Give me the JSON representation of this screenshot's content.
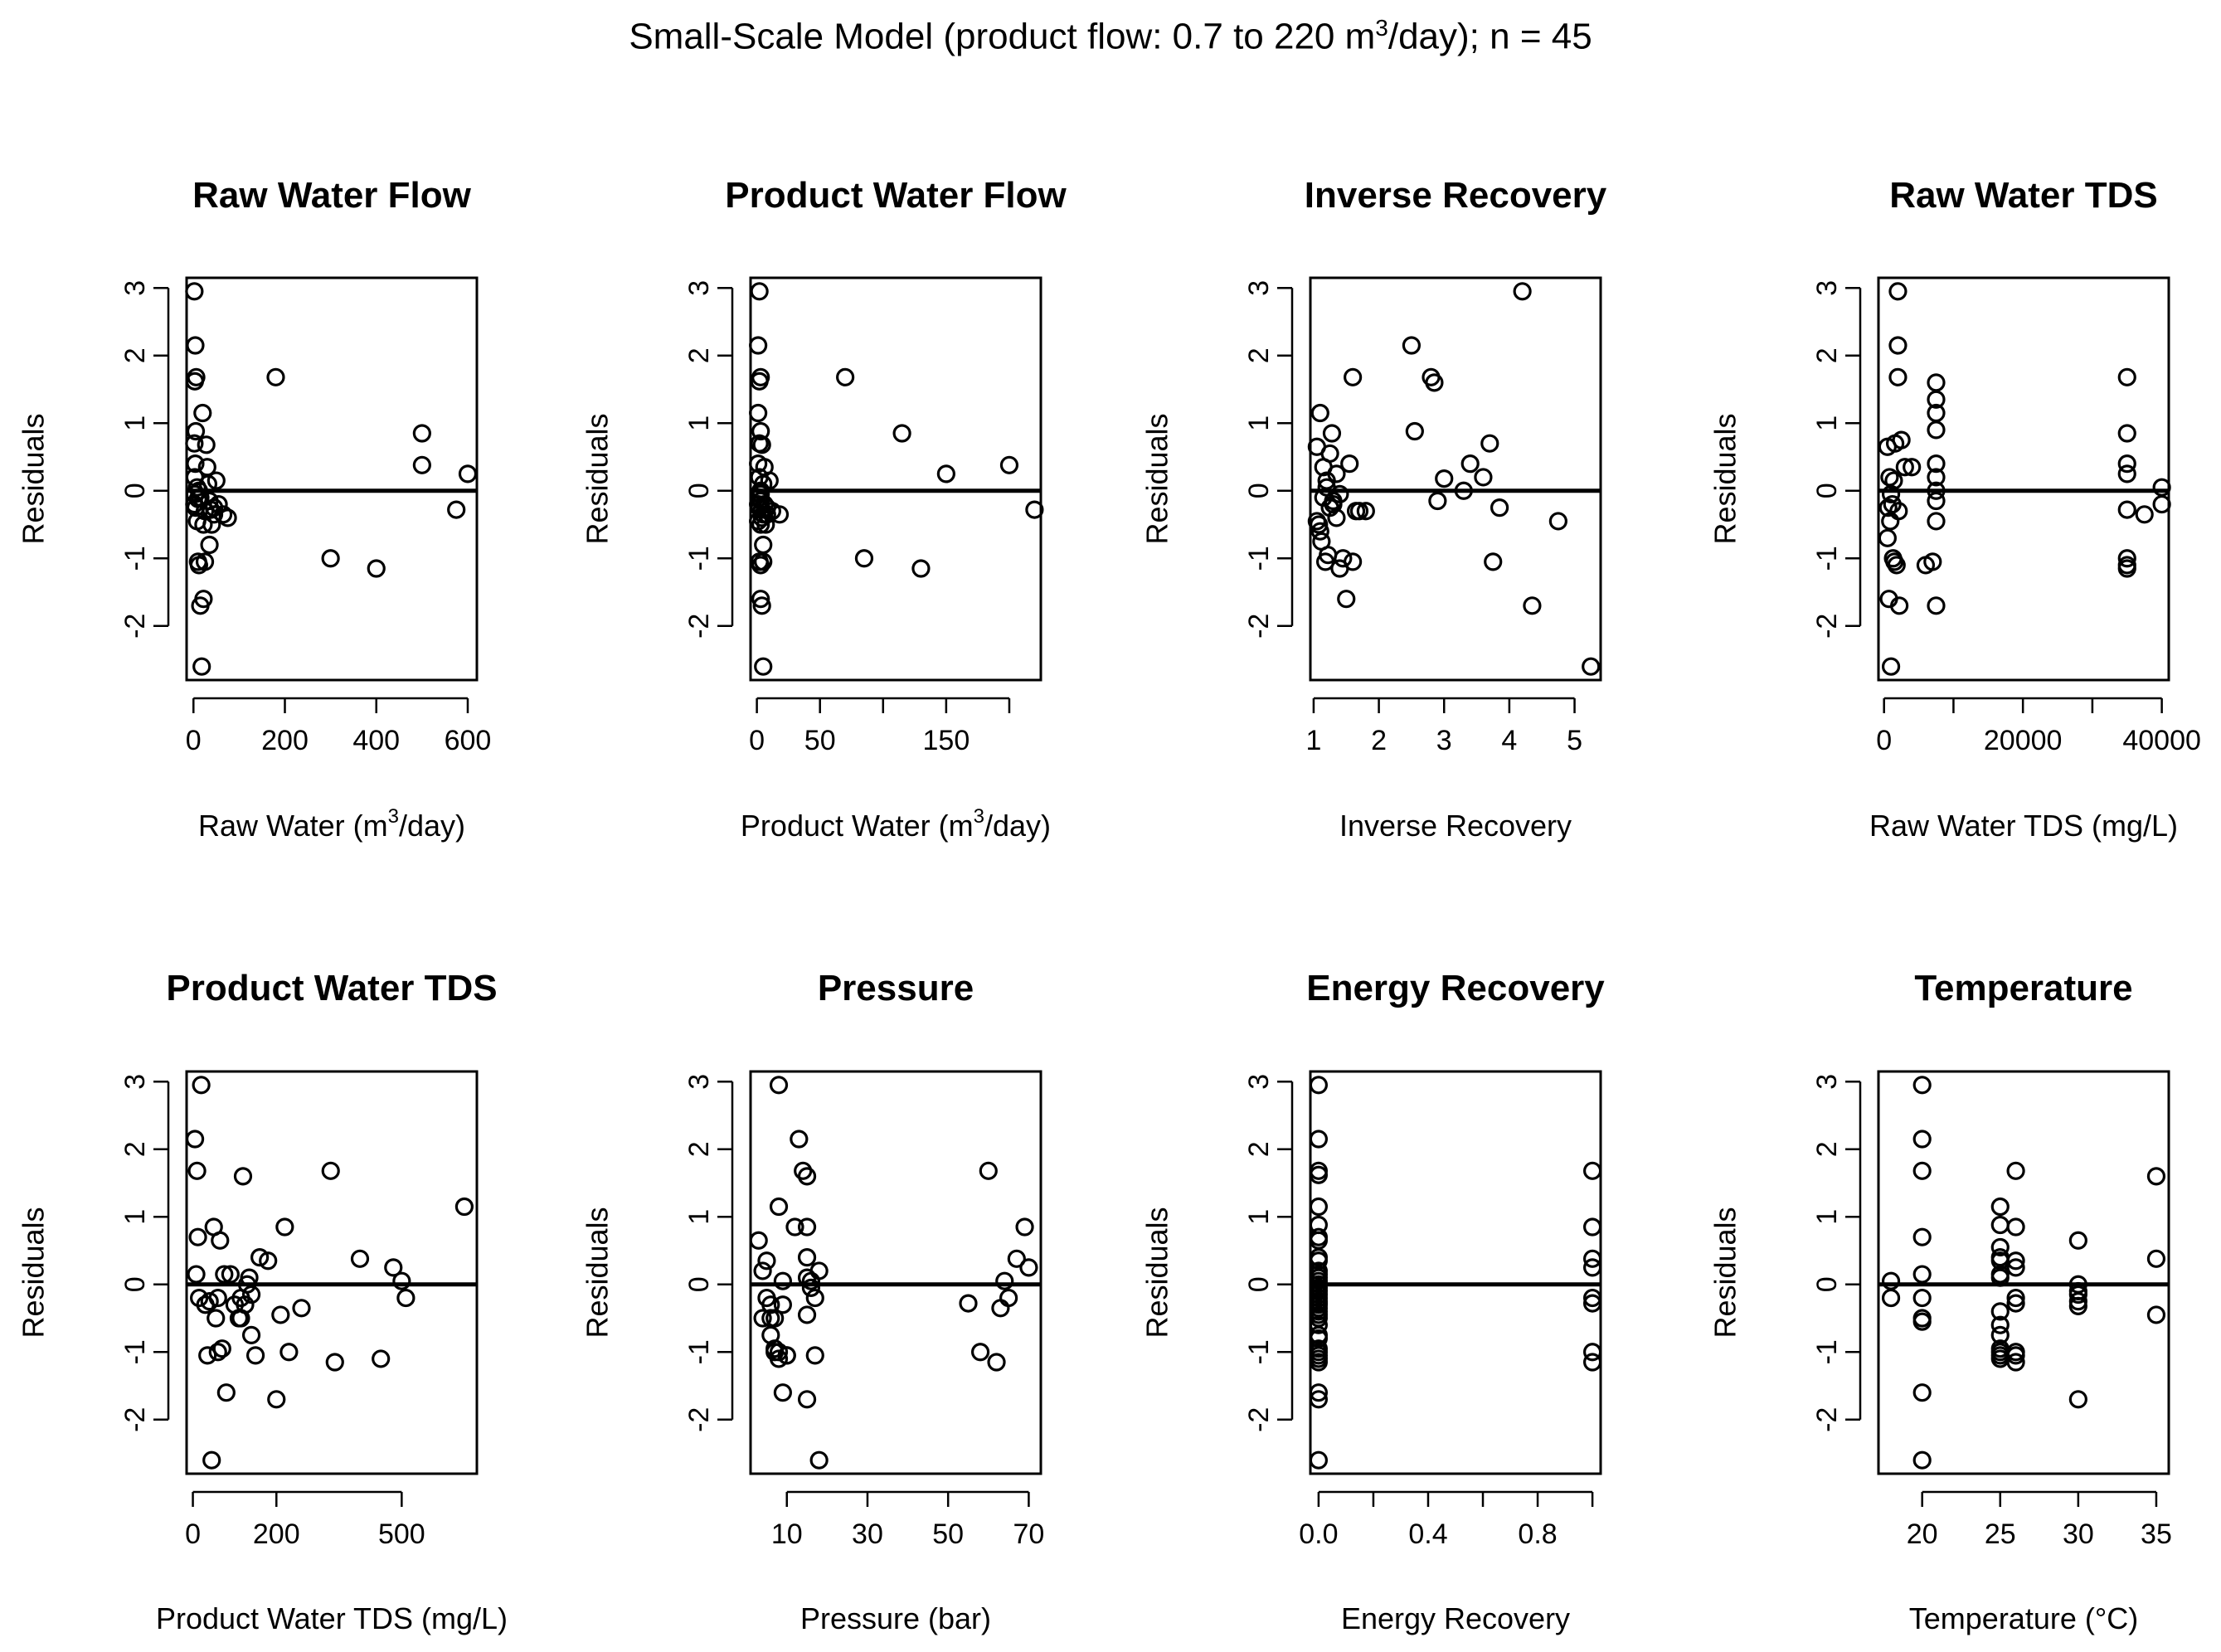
{
  "figure_title": {
    "prefix": "Small-Scale Model (product flow: 0.7 to 220 m",
    "sup": "3",
    "suffix": "/day); n = 45"
  },
  "chart_data": [
    {
      "type": "scatter",
      "title": "Raw Water Flow",
      "xlabel": "Raw Water (m",
      "xlabel_sup": "3",
      "xlabel_suffix": "/day)",
      "ylabel": "Residuals",
      "xlim": [
        -15,
        620
      ],
      "ylim": [
        -2.8,
        3.15
      ],
      "xticks": [
        0,
        200,
        400,
        600
      ],
      "xtick_labels": [
        "0",
        "200",
        "400",
        "600"
      ],
      "yticks": [
        -2,
        -1,
        0,
        1,
        2,
        3
      ],
      "ytick_labels": [
        "-2",
        "-1",
        "0",
        "1",
        "2",
        "3"
      ],
      "hline": 0,
      "x": [
        2,
        4,
        6,
        3,
        5,
        2,
        4,
        3,
        3,
        2,
        5,
        8,
        10,
        12,
        15,
        18,
        20,
        22,
        25,
        28,
        30,
        32,
        35,
        38,
        40,
        45,
        50,
        55,
        65,
        75,
        15,
        12,
        22,
        35,
        45,
        180,
        300,
        400,
        500,
        500,
        575,
        600,
        8,
        10,
        25
      ],
      "y": [
        2.95,
        2.15,
        1.68,
        1.62,
        0.88,
        0.7,
        0.4,
        0.2,
        -0.05,
        -0.2,
        -0.25,
        -0.45,
        -1.05,
        -1.1,
        -1.7,
        -2.6,
        1.15,
        -1.6,
        -1.05,
        0.68,
        0.35,
        0.1,
        -0.15,
        -0.28,
        -0.5,
        -0.35,
        0.15,
        -0.2,
        -0.35,
        -0.4,
        -0.1,
        0.0,
        -0.5,
        -0.8,
        -0.25,
        1.68,
        -1.0,
        -1.15,
        0.85,
        0.38,
        -0.28,
        0.25,
        0.05,
        -0.12,
        -0.3
      ]
    },
    {
      "type": "scatter",
      "title": "Product Water Flow",
      "xlabel": "Product Water (m",
      "xlabel_sup": "3",
      "xlabel_suffix": "/day)",
      "ylabel": "Residuals",
      "xlim": [
        -5,
        225
      ],
      "ylim": [
        -2.8,
        3.15
      ],
      "xticks": [
        0,
        50,
        100,
        150,
        200
      ],
      "xtick_labels": [
        "0",
        "50",
        "",
        "150",
        ""
      ],
      "yticks": [
        -2,
        -1,
        0,
        1,
        2,
        3
      ],
      "ytick_labels": [
        "-2",
        "-1",
        "0",
        "1",
        "2",
        "3"
      ],
      "hline": 0,
      "x": [
        2,
        1,
        3,
        2,
        1,
        3,
        2,
        1,
        2,
        3,
        1,
        2,
        1,
        2,
        3,
        4,
        5,
        3,
        2,
        4,
        6,
        5,
        3,
        4,
        7,
        8,
        10,
        6,
        5,
        4,
        2,
        3,
        5,
        8,
        12,
        18,
        70,
        85,
        115,
        130,
        150,
        200,
        220,
        5,
        3
      ],
      "y": [
        2.95,
        2.15,
        1.68,
        1.62,
        1.15,
        0.88,
        0.7,
        0.4,
        0.2,
        -0.05,
        -0.2,
        -0.25,
        -0.45,
        -1.05,
        -1.1,
        -1.7,
        -2.6,
        -1.6,
        -1.05,
        0.68,
        0.35,
        0.1,
        -0.15,
        -0.28,
        -0.5,
        -0.35,
        0.15,
        -0.2,
        -0.35,
        -0.4,
        -0.1,
        0.0,
        -0.8,
        -0.25,
        -0.3,
        -0.35,
        1.68,
        -1.0,
        0.85,
        -1.15,
        0.25,
        0.38,
        -0.28,
        -1.05,
        -0.5
      ]
    },
    {
      "type": "scatter",
      "title": "Inverse Recovery",
      "xlabel": "Inverse Recovery",
      "xlabel_sup": "",
      "xlabel_suffix": "",
      "ylabel": "Residuals",
      "xlim": [
        0.95,
        5.4
      ],
      "ylim": [
        -2.8,
        3.15
      ],
      "xticks": [
        1,
        2,
        3,
        4,
        5
      ],
      "xtick_labels": [
        "1",
        "2",
        "3",
        "4",
        "5"
      ],
      "yticks": [
        -2,
        -1,
        0,
        1,
        2,
        3
      ],
      "ytick_labels": [
        "-2",
        "-1",
        "0",
        "1",
        "2",
        "3"
      ],
      "hline": 0,
      "x": [
        1.1,
        1.05,
        1.15,
        1.2,
        1.08,
        1.25,
        1.3,
        1.12,
        1.18,
        1.22,
        1.28,
        1.35,
        1.4,
        1.5,
        1.45,
        1.6,
        1.55,
        1.65,
        1.7,
        1.8,
        1.1,
        1.15,
        1.2,
        1.3,
        1.05,
        2.5,
        2.55,
        2.8,
        2.85,
        2.9,
        3.0,
        3.3,
        3.4,
        3.6,
        3.7,
        3.75,
        3.85,
        4.2,
        4.35,
        4.75,
        5.25,
        1.4,
        1.6,
        1.25,
        1.35
      ],
      "y": [
        1.15,
        0.65,
        0.35,
        0.15,
        -0.5,
        -0.25,
        -0.2,
        -0.75,
        -1.05,
        -0.95,
        0.85,
        0.25,
        -0.05,
        -1.6,
        -1.0,
        1.68,
        0.4,
        -0.3,
        -0.3,
        -0.3,
        -0.6,
        -0.1,
        0.05,
        -0.15,
        -0.45,
        2.15,
        0.88,
        1.68,
        1.6,
        -0.15,
        0.18,
        0.0,
        0.4,
        0.2,
        0.7,
        -1.05,
        -0.25,
        2.95,
        -1.7,
        -0.45,
        -2.6,
        -1.15,
        -1.05,
        0.55,
        -0.4
      ]
    },
    {
      "type": "scatter",
      "title": "Raw Water TDS",
      "xlabel": "Raw Water TDS (mg/L)",
      "xlabel_sup": "",
      "xlabel_suffix": "",
      "ylabel": "Residuals",
      "xlim": [
        -800,
        41000
      ],
      "ylim": [
        -2.8,
        3.15
      ],
      "xticks": [
        0,
        10000,
        20000,
        30000,
        40000
      ],
      "xtick_labels": [
        "0",
        "",
        "20000",
        "",
        "40000"
      ],
      "yticks": [
        -2,
        -1,
        0,
        1,
        2,
        3
      ],
      "ytick_labels": [
        "-2",
        "-1",
        "0",
        "1",
        "2",
        "3"
      ],
      "hline": 0,
      "x": [
        2000,
        2000,
        2000,
        500,
        800,
        1000,
        1200,
        600,
        900,
        1500,
        1800,
        2200,
        1000,
        700,
        1300,
        1600,
        500,
        2500,
        3000,
        4000,
        6000,
        7000,
        7500,
        7500,
        7500,
        7500,
        7500,
        7500,
        7500,
        7500,
        7500,
        7500,
        35000,
        35000,
        35000,
        35000,
        35000,
        35000,
        35000,
        35000,
        37500,
        40000,
        40000,
        1400,
        2100
      ],
      "y": [
        2.95,
        2.15,
        1.68,
        0.65,
        0.2,
        -0.05,
        -0.2,
        -0.25,
        -0.45,
        -1.05,
        -1.1,
        -1.7,
        -2.6,
        -1.6,
        -1.0,
        0.7,
        -0.7,
        0.75,
        0.35,
        0.35,
        -1.1,
        -1.05,
        1.6,
        1.35,
        1.15,
        0.9,
        0.4,
        0.2,
        0.0,
        -0.15,
        -0.45,
        -1.7,
        1.68,
        0.85,
        0.4,
        0.25,
        -0.28,
        -1.0,
        -1.1,
        -1.15,
        -0.35,
        0.05,
        -0.2,
        0.15,
        -0.3
      ]
    },
    {
      "type": "scatter",
      "title": "Product Water TDS",
      "xlabel": "Product Water TDS (mg/L)",
      "xlabel_sup": "",
      "xlabel_suffix": "",
      "ylabel": "Residuals",
      "xlim": [
        -15,
        680
      ],
      "ylim": [
        -2.8,
        3.15
      ],
      "xticks": [
        0,
        200,
        500
      ],
      "xtick_labels": [
        "0",
        "200",
        "500"
      ],
      "yticks": [
        -2,
        -1,
        0,
        1,
        2,
        3
      ],
      "ytick_labels": [
        "-2",
        "-1",
        "0",
        "1",
        "2",
        "3"
      ],
      "hline": 0,
      "x": [
        5,
        8,
        10,
        12,
        15,
        20,
        30,
        40,
        50,
        55,
        60,
        65,
        70,
        75,
        80,
        90,
        100,
        110,
        115,
        120,
        130,
        140,
        150,
        160,
        180,
        200,
        210,
        220,
        230,
        260,
        330,
        340,
        400,
        450,
        480,
        500,
        510,
        650,
        45,
        35,
        60,
        115,
        125,
        135,
        140
      ],
      "y": [
        2.15,
        0.15,
        1.68,
        0.7,
        -0.2,
        2.95,
        -0.3,
        -0.25,
        0.85,
        -0.5,
        -1.0,
        0.65,
        -0.95,
        0.15,
        -1.6,
        0.15,
        -0.3,
        -0.5,
        -0.2,
        1.6,
        0.0,
        -0.75,
        -1.05,
        0.4,
        0.35,
        -1.7,
        -0.45,
        0.85,
        -1.0,
        -0.35,
        1.68,
        -1.15,
        0.38,
        -1.1,
        0.25,
        0.05,
        -0.2,
        1.15,
        -2.6,
        -1.05,
        -0.2,
        -0.5,
        -0.3,
        0.1,
        -0.15
      ]
    },
    {
      "type": "scatter",
      "title": "Pressure",
      "xlabel": "Pressure (bar)",
      "xlabel_sup": "",
      "xlabel_suffix": "",
      "ylabel": "Residuals",
      "xlim": [
        1,
        73
      ],
      "ylim": [
        -2.8,
        3.15
      ],
      "xticks": [
        10,
        30,
        50,
        70
      ],
      "xtick_labels": [
        "10",
        "30",
        "50",
        "70"
      ],
      "yticks": [
        -2,
        -1,
        0,
        1,
        2,
        3
      ],
      "ytick_labels": [
        "-2",
        "-1",
        "0",
        "1",
        "2",
        "3"
      ],
      "hline": 0,
      "x": [
        3,
        4,
        4,
        5,
        5,
        6,
        6,
        7,
        7,
        8,
        8,
        9,
        9,
        10,
        10,
        12,
        13,
        14,
        15,
        15,
        15,
        15,
        15,
        15,
        16,
        16,
        17,
        17,
        18,
        18,
        6,
        7,
        8,
        8,
        55,
        58,
        60,
        62,
        63,
        64,
        65,
        67,
        69,
        70,
        9
      ],
      "y": [
        0.65,
        0.2,
        -0.5,
        0.35,
        -0.2,
        -0.5,
        -0.75,
        -0.95,
        -1.0,
        2.95,
        1.15,
        -1.6,
        -0.3,
        -1.05,
        -1.05,
        0.85,
        2.15,
        1.68,
        1.6,
        0.85,
        0.4,
        0.1,
        -0.45,
        -1.7,
        0.05,
        -0.05,
        -0.2,
        -1.05,
        0.2,
        -2.6,
        -0.3,
        -0.5,
        -1.0,
        -1.1,
        -0.28,
        -1.0,
        1.68,
        -1.15,
        -0.35,
        0.05,
        -0.2,
        0.38,
        0.85,
        0.25,
        0.05
      ]
    },
    {
      "type": "scatter",
      "title": "Energy Recovery",
      "xlabel": "Energy Recovery",
      "xlabel_sup": "",
      "xlabel_suffix": "",
      "ylabel": "Residuals",
      "xlim": [
        -0.03,
        1.03
      ],
      "ylim": [
        -2.8,
        3.15
      ],
      "xticks": [
        0,
        0.2,
        0.4,
        0.6,
        0.8,
        1.0
      ],
      "xtick_labels": [
        "0.0",
        "",
        "0.4",
        "",
        "0.8",
        ""
      ],
      "yticks": [
        -2,
        -1,
        0,
        1,
        2,
        3
      ],
      "ytick_labels": [
        "-2",
        "-1",
        "0",
        "1",
        "2",
        "3"
      ],
      "hline": 0,
      "x": [
        0,
        0,
        0,
        0,
        0,
        0,
        0,
        0,
        0,
        0,
        0,
        0,
        0,
        0,
        0,
        0,
        0,
        0,
        0,
        0,
        0,
        0,
        0,
        0,
        0,
        0,
        0,
        0,
        0,
        0,
        0,
        0,
        0,
        0,
        0,
        0,
        0,
        1,
        1,
        1,
        1,
        1,
        1,
        1,
        1
      ],
      "y": [
        2.95,
        2.15,
        1.68,
        1.62,
        1.15,
        0.88,
        0.7,
        0.65,
        0.4,
        0.35,
        0.2,
        0.15,
        0.1,
        0.05,
        0.0,
        -0.05,
        -0.1,
        -0.15,
        -0.2,
        -0.25,
        -0.28,
        -0.3,
        -0.35,
        -0.4,
        -0.45,
        -0.5,
        -0.6,
        -0.75,
        -0.95,
        -1.0,
        -1.05,
        -1.1,
        -1.15,
        -1.6,
        -1.7,
        -2.6,
        -0.8,
        1.68,
        0.85,
        0.38,
        0.25,
        -0.2,
        -0.28,
        -1.0,
        -1.15
      ]
    },
    {
      "type": "scatter",
      "title": "Temperature",
      "xlabel": "Temperature (°C)",
      "xlabel_sup": "",
      "xlabel_suffix": "",
      "ylabel": "Residuals",
      "xlim": [
        17.2,
        35.8
      ],
      "ylim": [
        -2.8,
        3.15
      ],
      "xticks": [
        20,
        25,
        30,
        35
      ],
      "xtick_labels": [
        "20",
        "25",
        "30",
        "35"
      ],
      "yticks": [
        -2,
        -1,
        0,
        1,
        2,
        3
      ],
      "ytick_labels": [
        "-2",
        "-1",
        "0",
        "1",
        "2",
        "3"
      ],
      "hline": 0,
      "x": [
        18,
        18,
        20,
        20,
        20,
        20,
        20,
        20,
        20,
        20,
        20,
        25,
        25,
        25,
        25,
        25,
        25,
        25,
        25,
        25,
        25,
        26,
        26,
        26,
        26,
        26,
        26,
        26,
        30,
        30,
        30,
        30,
        30,
        30,
        35,
        35,
        35,
        25,
        25,
        26,
        20,
        30,
        25,
        26,
        25
      ],
      "y": [
        0.05,
        -0.2,
        2.95,
        2.15,
        1.68,
        0.7,
        0.15,
        -0.2,
        -0.5,
        -1.6,
        -2.6,
        1.15,
        0.88,
        0.35,
        0.15,
        -0.4,
        -0.75,
        -0.95,
        -1.05,
        -1.1,
        0.4,
        1.68,
        0.85,
        0.35,
        0.25,
        -0.28,
        -1.0,
        -1.15,
        0.65,
        0.0,
        -0.15,
        -0.25,
        -0.32,
        -1.7,
        1.6,
        0.38,
        -0.45,
        0.55,
        -1.0,
        -1.05,
        -0.55,
        -0.1,
        0.1,
        -0.2,
        -0.6
      ]
    }
  ]
}
